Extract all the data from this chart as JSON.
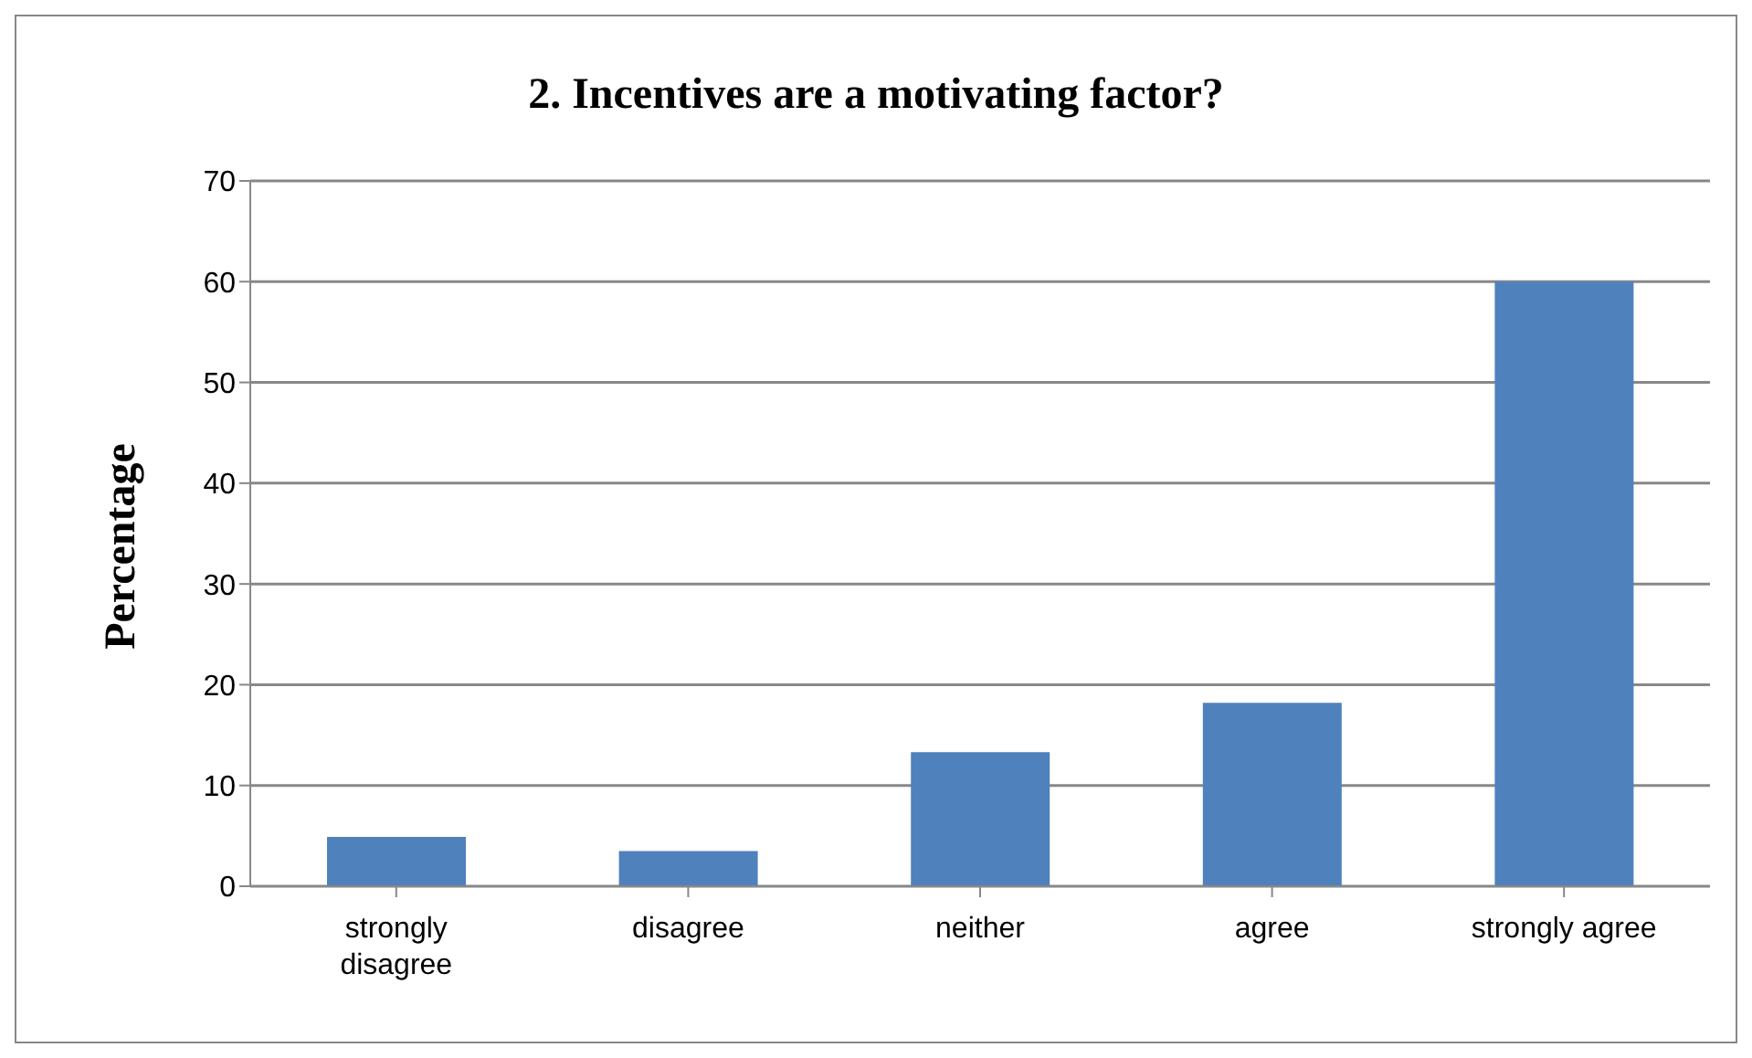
{
  "chart_data": {
    "type": "bar",
    "title": "2. Incentives are a motivating factor?",
    "ylabel": "Percentage",
    "categories": [
      "strongly disagree",
      "disagree",
      "neither",
      "agree",
      "strongly agree"
    ],
    "values": [
      4.9,
      3.5,
      13.3,
      18.2,
      60
    ],
    "color": "#4f81bd",
    "ylim": [
      0,
      70
    ],
    "yticks": [
      0,
      10,
      20,
      30,
      40,
      50,
      60,
      70
    ],
    "grid": "y"
  }
}
